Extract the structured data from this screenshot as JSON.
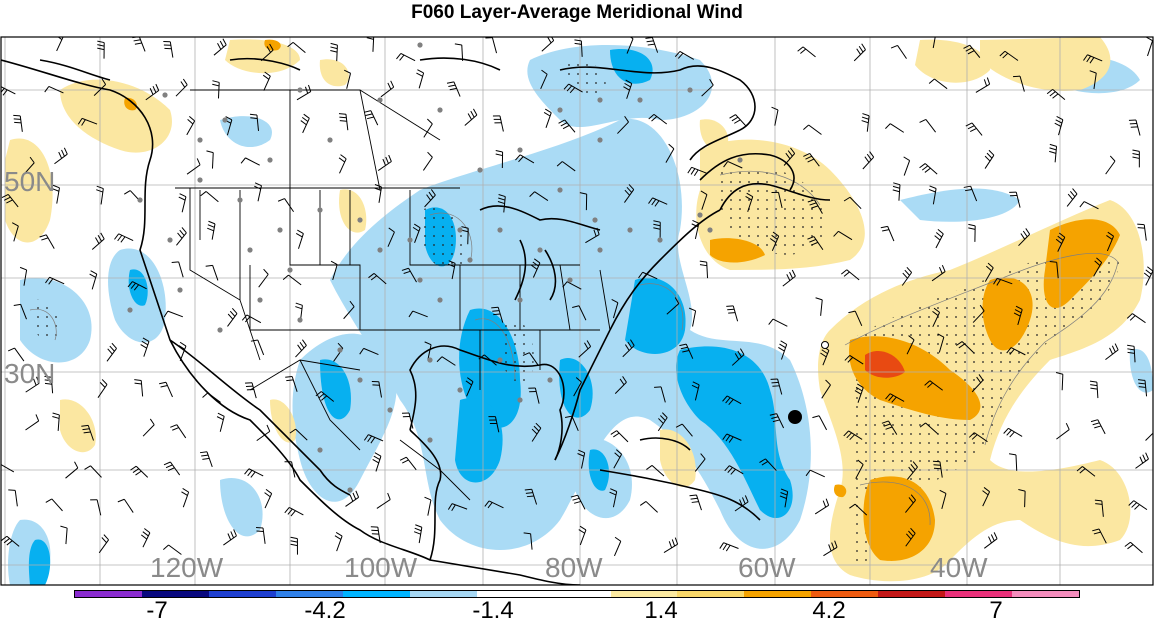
{
  "title": "F060 Layer-Average Meridional Wind",
  "lat_labels": [
    "50N",
    "30N"
  ],
  "lon_labels": [
    "120W",
    "100W",
    "80W",
    "60W",
    "40W"
  ],
  "colorbar": {
    "colors": [
      "#8a2bd0",
      "#08087e",
      "#1e3fd0",
      "#2f80e8",
      "#00b4ff",
      "#a6d8f4",
      "#ffffff",
      "#ffffff",
      "#fbe9a0",
      "#f9d86a",
      "#f5a300",
      "#ee5b10",
      "#c31818",
      "#e9307a",
      "#f48dbd"
    ],
    "labels": [
      "-7",
      "-4.2",
      "-1.4",
      "1.4",
      "4.2",
      "7"
    ]
  },
  "colors": {
    "negative_light": "#aadbf5",
    "negative_strong": "#07b0f0",
    "positive_light": "#fbe7a1",
    "positive_medium": "#f5a300",
    "positive_strong": "#e84a12",
    "grid": "#b0b0b0",
    "station": "#808080",
    "coast": "#000000"
  }
}
